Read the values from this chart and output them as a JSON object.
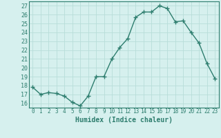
{
  "x": [
    0,
    1,
    2,
    3,
    4,
    5,
    6,
    7,
    8,
    9,
    10,
    11,
    12,
    13,
    14,
    15,
    16,
    17,
    18,
    19,
    20,
    21,
    22,
    23
  ],
  "y": [
    17.8,
    17.0,
    17.2,
    17.1,
    16.8,
    16.1,
    15.7,
    16.8,
    19.0,
    19.0,
    21.0,
    22.3,
    23.3,
    25.7,
    26.3,
    26.3,
    27.0,
    26.7,
    25.2,
    25.3,
    24.0,
    22.8,
    20.5,
    18.8
  ],
  "line_color": "#2d7d6e",
  "marker": "+",
  "background_color": "#d6f0ee",
  "grid_color": "#b8ddd9",
  "xlabel": "Humidex (Indice chaleur)",
  "ylim": [
    15.5,
    27.5
  ],
  "xlim": [
    -0.5,
    23.5
  ],
  "yticks": [
    16,
    17,
    18,
    19,
    20,
    21,
    22,
    23,
    24,
    25,
    26,
    27
  ],
  "xticks": [
    0,
    1,
    2,
    3,
    4,
    5,
    6,
    7,
    8,
    9,
    10,
    11,
    12,
    13,
    14,
    15,
    16,
    17,
    18,
    19,
    20,
    21,
    22,
    23
  ],
  "tick_color": "#2d7d6e",
  "label_color": "#2d7d6e",
  "line_width": 1.0,
  "marker_size": 4
}
